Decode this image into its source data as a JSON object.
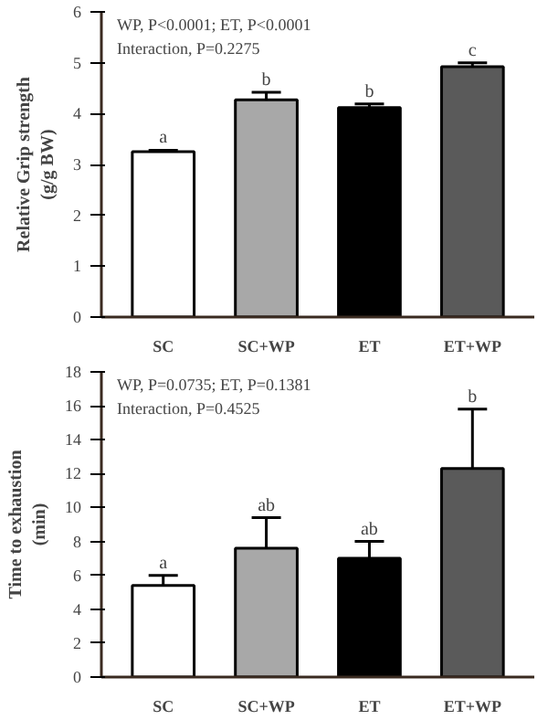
{
  "chart_data": [
    {
      "type": "bar",
      "categories": [
        "SC",
        "SC+WP",
        "ET",
        "ET+WP"
      ],
      "values": [
        3.25,
        4.27,
        4.12,
        4.92
      ],
      "colors": [
        "#ffffff",
        "#a8a8a8",
        "#000000",
        "#5a5a5a"
      ],
      "errors": [
        [
          3.25,
          3.28
        ],
        [
          4.27,
          4.42
        ],
        [
          4.12,
          4.19
        ],
        [
          4.92,
          5.0
        ]
      ],
      "ylabel": "Relative Grip strength\n(g/g BW)",
      "ylim": [
        0,
        6
      ],
      "yticks": [
        0,
        1,
        2,
        3,
        4,
        5,
        6
      ],
      "annotations": [
        "WP, P<0.0001; ET, P<0.0001",
        "Interaction, P=0.2275",
        {
          "text": "a",
          "x": "SC",
          "y": 3.28
        },
        {
          "text": "b",
          "x": "SC+WP",
          "y": 4.42
        },
        {
          "text": "b",
          "x": "ET",
          "y": 4.19
        },
        {
          "text": "c",
          "x": "ET+WP",
          "y": 5.0
        }
      ]
    },
    {
      "type": "bar",
      "categories": [
        "SC",
        "SC+WP",
        "ET",
        "ET+WP"
      ],
      "values": [
        5.4,
        7.6,
        7.0,
        12.3
      ],
      "colors": [
        "#ffffff",
        "#a8a8a8",
        "#000000",
        "#5a5a5a"
      ],
      "errors": [
        [
          5.4,
          6.0
        ],
        [
          7.6,
          9.4
        ],
        [
          7.0,
          8.0
        ],
        [
          12.3,
          15.8
        ]
      ],
      "ylabel": "Time to exhaustion\n(min)",
      "ylim": [
        0,
        18
      ],
      "yticks": [
        0,
        2,
        4,
        6,
        8,
        10,
        12,
        14,
        16,
        18
      ],
      "annotations": [
        "WP, P=0.0735; ET, P=0.1381",
        "Interaction, P=0.4525",
        {
          "text": "a",
          "x": "SC",
          "y": 6.0
        },
        {
          "text": "ab",
          "x": "SC+WP",
          "y": 9.4
        },
        {
          "text": "ab",
          "x": "ET",
          "y": 8.0
        },
        {
          "text": "b",
          "x": "ET+WP",
          "y": 15.8
        }
      ]
    }
  ]
}
